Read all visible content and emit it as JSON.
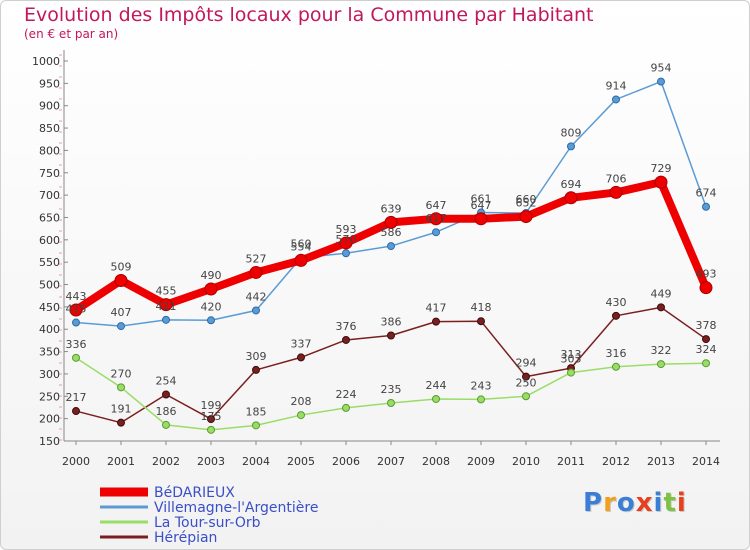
{
  "header": {
    "title": "Evolution des Impôts locaux pour la Commune par Habitant",
    "subtitle": "(en € et par an)"
  },
  "logo": {
    "text": "Proxiti",
    "colors": [
      "#3a7fd5",
      "#f0a020",
      "#3a7fd5",
      "#e8401c",
      "#3a7fd5",
      "#7dc242",
      "#e8401c"
    ]
  },
  "chart_data": {
    "type": "line",
    "x": [
      2000,
      2001,
      2002,
      2003,
      2004,
      2005,
      2006,
      2007,
      2008,
      2009,
      2010,
      2011,
      2012,
      2013,
      2014
    ],
    "ylim": [
      150,
      1000
    ],
    "yticks": [
      150,
      200,
      250,
      300,
      350,
      400,
      450,
      500,
      550,
      600,
      650,
      700,
      750,
      800,
      850,
      900,
      950,
      1000
    ],
    "grid": false,
    "legend": "bottom-left",
    "series": [
      {
        "name": "BéDARIEUX",
        "color": "#ee0000",
        "values": [
          443,
          509,
          455,
          490,
          527,
          554,
          593,
          639,
          647,
          647,
          652,
          694,
          706,
          729,
          493
        ]
      },
      {
        "name": "Villemagne-l'Argentière",
        "color": "#5b9bd5",
        "values": [
          415,
          407,
          421,
          420,
          442,
          560,
          570,
          586,
          617,
          661,
          660,
          809,
          914,
          954,
          674
        ]
      },
      {
        "name": "La Tour-sur-Orb",
        "color": "#99dd66",
        "values": [
          336,
          270,
          186,
          175,
          185,
          208,
          224,
          235,
          244,
          243,
          250,
          303,
          316,
          322,
          324
        ]
      },
      {
        "name": "Hérépian",
        "color": "#7a1f1f",
        "values": [
          217,
          191,
          254,
          199,
          309,
          337,
          376,
          386,
          417,
          418,
          294,
          313,
          430,
          449,
          378
        ]
      }
    ]
  }
}
